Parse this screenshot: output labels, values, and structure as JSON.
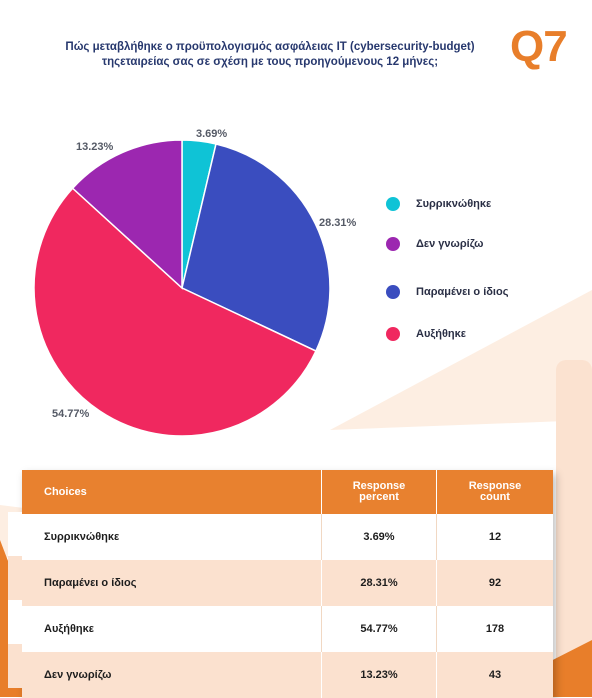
{
  "header": {
    "title_line1": "Πώς μεταβλήθηκε ο προϋπολογισμός ασφάλειας IT (cybersecurity-budget)",
    "title_line2": "τηςεταιρείας σας σε σχέση με τους προηγούμενους 12 μήνες;",
    "question_number": "Q7",
    "accent_color": "#e87e2a"
  },
  "chart_data": {
    "type": "pie",
    "title": "",
    "slices": [
      {
        "label": "Συρρικνώθηκε",
        "value": 3.69,
        "display": "3.69%",
        "color": "#0fc3d6"
      },
      {
        "label": "Παραμένει ο ίδιος",
        "value": 28.31,
        "display": "28.31%",
        "color": "#3a4dbf"
      },
      {
        "label": "Αυξήθηκε",
        "value": 54.77,
        "display": "54.77%",
        "color": "#f0285f"
      },
      {
        "label": "Δεν γνωρίζω",
        "value": 13.23,
        "display": "13.23%",
        "color": "#9c27b0"
      }
    ],
    "legend_order": [
      "Συρρικνώθηκε",
      "Δεν γνωρίζω",
      "Παραμένει ο ίδιος",
      "Αυξήθηκε"
    ],
    "legend_placement": "right"
  },
  "table": {
    "headers": {
      "choices": "Choices",
      "percent_line1": "Response",
      "percent_line2": "percent",
      "count_line1": "Response",
      "count_line2": "count"
    },
    "rows": [
      {
        "choice": "Συρρικνώθηκε",
        "percent": "3.69%",
        "count": "12"
      },
      {
        "choice": "Παραμένει ο ίδιος",
        "percent": "28.31%",
        "count": "92"
      },
      {
        "choice": "Αυξήθηκε",
        "percent": "54.77%",
        "count": "178"
      },
      {
        "choice": "Δεν γνωρίζω",
        "percent": "13.23%",
        "count": "43"
      }
    ],
    "header_color": "#e8812f",
    "alt_row_color": "#fbe1cf"
  }
}
